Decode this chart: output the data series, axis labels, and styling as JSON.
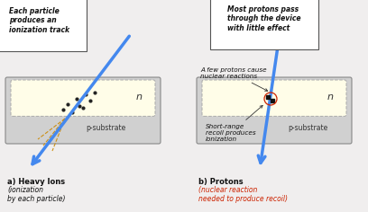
{
  "bg_color": "#f0eeee",
  "device_gray": "#d0d0d0",
  "n_region_color": "#fffde8",
  "n_border_color": "#aaaaaa",
  "arrow_blue": "#4488ee",
  "dot_color": "#222222",
  "orange_dash": "#cc8800",
  "red_color": "#cc2200",
  "black": "#111111",
  "white": "#ffffff",
  "box_edge": "#555555",
  "text_box_a": "Each particle\nproduces an\nionization track",
  "text_box_b": "Most protons pass\nthrough the device\nwith little effect",
  "label_nuclear": "A few protons cause\nnuclear reactions",
  "label_recoil": "Short-range\nrecoil produces\nionization",
  "cap_a_bold": "a) Heavy Ions ",
  "cap_a_italic": "(ionization\nby each particle)",
  "cap_b_bold": "b) Protons ",
  "cap_b_italic": "(nuclear reaction\nneeded to produce recoil)"
}
